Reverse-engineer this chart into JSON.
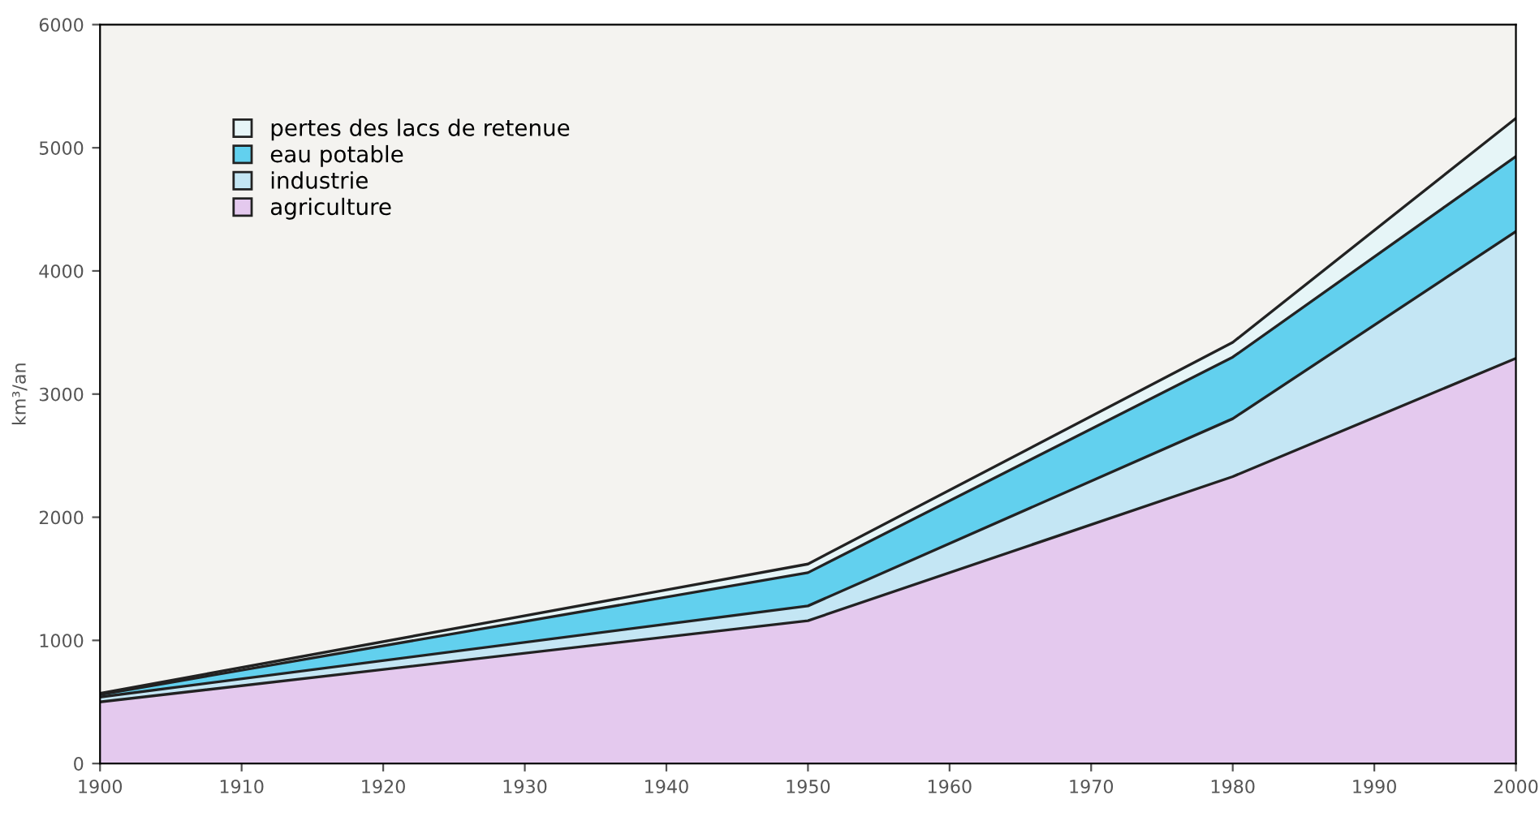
{
  "chart_data": {
    "type": "area",
    "stacked": true,
    "ylabel": "km³/an",
    "x": [
      1900,
      1950,
      1980,
      2000
    ],
    "xlim": [
      1900,
      2000
    ],
    "xticks": [
      1900,
      1910,
      1920,
      1930,
      1940,
      1950,
      1960,
      1970,
      1980,
      1990,
      2000
    ],
    "ylim": [
      0,
      6000
    ],
    "yticks": [
      0,
      1000,
      2000,
      3000,
      4000,
      5000,
      6000
    ],
    "grid": false,
    "legend": "top left",
    "series": [
      {
        "name": "agriculture",
        "color": "#e4c9ee",
        "values": [
          500,
          1160,
          2330,
          3290
        ]
      },
      {
        "name": "industrie",
        "color": "#c4e6f4",
        "values": [
          40,
          120,
          470,
          1030
        ]
      },
      {
        "name": "eau potable",
        "color": "#62d0ee",
        "values": [
          20,
          270,
          500,
          610
        ]
      },
      {
        "name": "pertes des lacs de retenue",
        "color": "#e6f5f7",
        "values": [
          10,
          70,
          120,
          310
        ]
      }
    ]
  }
}
